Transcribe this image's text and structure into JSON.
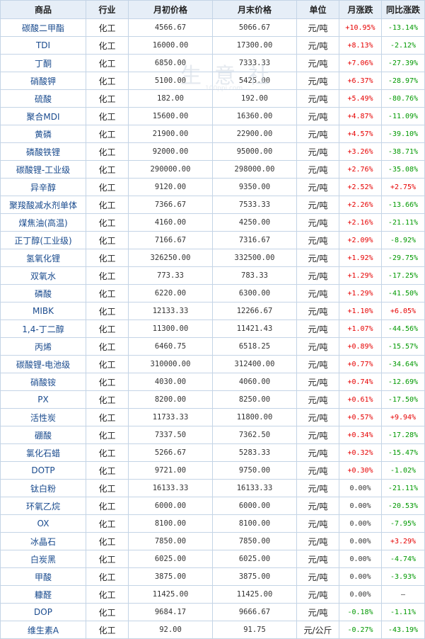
{
  "headers": [
    "商品",
    "行业",
    "月初价格",
    "月末价格",
    "单位",
    "月涨跌",
    "同比涨跌"
  ],
  "watermark": {
    "text": "生意社",
    "sub": "100ppi.com"
  },
  "rows": [
    {
      "name": "碳酸二甲酯",
      "industry": "化工",
      "start": "4566.67",
      "end": "5066.67",
      "unit": "元/吨",
      "month": "+10.95%",
      "yoy": "-13.14%"
    },
    {
      "name": "TDI",
      "industry": "化工",
      "start": "16000.00",
      "end": "17300.00",
      "unit": "元/吨",
      "month": "+8.13%",
      "yoy": "-2.12%"
    },
    {
      "name": "丁酮",
      "industry": "化工",
      "start": "6850.00",
      "end": "7333.33",
      "unit": "元/吨",
      "month": "+7.06%",
      "yoy": "-27.39%"
    },
    {
      "name": "硝酸钾",
      "industry": "化工",
      "start": "5100.00",
      "end": "5425.00",
      "unit": "元/吨",
      "month": "+6.37%",
      "yoy": "-28.97%"
    },
    {
      "name": "硫酸",
      "industry": "化工",
      "start": "182.00",
      "end": "192.00",
      "unit": "元/吨",
      "month": "+5.49%",
      "yoy": "-80.76%"
    },
    {
      "name": "聚合MDI",
      "industry": "化工",
      "start": "15600.00",
      "end": "16360.00",
      "unit": "元/吨",
      "month": "+4.87%",
      "yoy": "-11.09%"
    },
    {
      "name": "黄磷",
      "industry": "化工",
      "start": "21900.00",
      "end": "22900.00",
      "unit": "元/吨",
      "month": "+4.57%",
      "yoy": "-39.10%"
    },
    {
      "name": "磷酸铁锂",
      "industry": "化工",
      "start": "92000.00",
      "end": "95000.00",
      "unit": "元/吨",
      "month": "+3.26%",
      "yoy": "-38.71%"
    },
    {
      "name": "碳酸锂-工业级",
      "industry": "化工",
      "start": "290000.00",
      "end": "298000.00",
      "unit": "元/吨",
      "month": "+2.76%",
      "yoy": "-35.08%"
    },
    {
      "name": "异辛醇",
      "industry": "化工",
      "start": "9120.00",
      "end": "9350.00",
      "unit": "元/吨",
      "month": "+2.52%",
      "yoy": "+2.75%"
    },
    {
      "name": "聚羧酸减水剂单体",
      "industry": "化工",
      "start": "7366.67",
      "end": "7533.33",
      "unit": "元/吨",
      "month": "+2.26%",
      "yoy": "-13.66%"
    },
    {
      "name": "煤焦油(高温)",
      "industry": "化工",
      "start": "4160.00",
      "end": "4250.00",
      "unit": "元/吨",
      "month": "+2.16%",
      "yoy": "-21.11%"
    },
    {
      "name": "正丁醇(工业级)",
      "industry": "化工",
      "start": "7166.67",
      "end": "7316.67",
      "unit": "元/吨",
      "month": "+2.09%",
      "yoy": "-8.92%"
    },
    {
      "name": "氢氧化锂",
      "industry": "化工",
      "start": "326250.00",
      "end": "332500.00",
      "unit": "元/吨",
      "month": "+1.92%",
      "yoy": "-29.75%"
    },
    {
      "name": "双氧水",
      "industry": "化工",
      "start": "773.33",
      "end": "783.33",
      "unit": "元/吨",
      "month": "+1.29%",
      "yoy": "-17.25%"
    },
    {
      "name": "磷酸",
      "industry": "化工",
      "start": "6220.00",
      "end": "6300.00",
      "unit": "元/吨",
      "month": "+1.29%",
      "yoy": "-41.50%"
    },
    {
      "name": "MIBK",
      "industry": "化工",
      "start": "12133.33",
      "end": "12266.67",
      "unit": "元/吨",
      "month": "+1.10%",
      "yoy": "+6.05%"
    },
    {
      "name": "1,4-丁二醇",
      "industry": "化工",
      "start": "11300.00",
      "end": "11421.43",
      "unit": "元/吨",
      "month": "+1.07%",
      "yoy": "-44.56%"
    },
    {
      "name": "丙烯",
      "industry": "化工",
      "start": "6460.75",
      "end": "6518.25",
      "unit": "元/吨",
      "month": "+0.89%",
      "yoy": "-15.57%"
    },
    {
      "name": "碳酸锂-电池级",
      "industry": "化工",
      "start": "310000.00",
      "end": "312400.00",
      "unit": "元/吨",
      "month": "+0.77%",
      "yoy": "-34.64%"
    },
    {
      "name": "硝酸铵",
      "industry": "化工",
      "start": "4030.00",
      "end": "4060.00",
      "unit": "元/吨",
      "month": "+0.74%",
      "yoy": "-12.69%"
    },
    {
      "name": "PX",
      "industry": "化工",
      "start": "8200.00",
      "end": "8250.00",
      "unit": "元/吨",
      "month": "+0.61%",
      "yoy": "-17.50%"
    },
    {
      "name": "活性炭",
      "industry": "化工",
      "start": "11733.33",
      "end": "11800.00",
      "unit": "元/吨",
      "month": "+0.57%",
      "yoy": "+9.94%"
    },
    {
      "name": "硼酸",
      "industry": "化工",
      "start": "7337.50",
      "end": "7362.50",
      "unit": "元/吨",
      "month": "+0.34%",
      "yoy": "-17.28%"
    },
    {
      "name": "氯化石蜡",
      "industry": "化工",
      "start": "5266.67",
      "end": "5283.33",
      "unit": "元/吨",
      "month": "+0.32%",
      "yoy": "-15.47%"
    },
    {
      "name": "DOTP",
      "industry": "化工",
      "start": "9721.00",
      "end": "9750.00",
      "unit": "元/吨",
      "month": "+0.30%",
      "yoy": "-1.02%"
    },
    {
      "name": "钛白粉",
      "industry": "化工",
      "start": "16133.33",
      "end": "16133.33",
      "unit": "元/吨",
      "month": "0.00%",
      "yoy": "-21.11%"
    },
    {
      "name": "环氧乙烷",
      "industry": "化工",
      "start": "6000.00",
      "end": "6000.00",
      "unit": "元/吨",
      "month": "0.00%",
      "yoy": "-20.53%"
    },
    {
      "name": "OX",
      "industry": "化工",
      "start": "8100.00",
      "end": "8100.00",
      "unit": "元/吨",
      "month": "0.00%",
      "yoy": "-7.95%"
    },
    {
      "name": "冰晶石",
      "industry": "化工",
      "start": "7850.00",
      "end": "7850.00",
      "unit": "元/吨",
      "month": "0.00%",
      "yoy": "+3.29%"
    },
    {
      "name": "白炭黑",
      "industry": "化工",
      "start": "6025.00",
      "end": "6025.00",
      "unit": "元/吨",
      "month": "0.00%",
      "yoy": "-4.74%"
    },
    {
      "name": "甲酸",
      "industry": "化工",
      "start": "3875.00",
      "end": "3875.00",
      "unit": "元/吨",
      "month": "0.00%",
      "yoy": "-3.93%"
    },
    {
      "name": "糠醛",
      "industry": "化工",
      "start": "11425.00",
      "end": "11425.00",
      "unit": "元/吨",
      "month": "0.00%",
      "yoy": "—"
    },
    {
      "name": "DOP",
      "industry": "化工",
      "start": "9684.17",
      "end": "9666.67",
      "unit": "元/吨",
      "month": "-0.18%",
      "yoy": "-1.11%"
    },
    {
      "name": "维生素A",
      "industry": "化工",
      "start": "92.00",
      "end": "91.75",
      "unit": "元/公斤",
      "month": "-0.27%",
      "yoy": "-43.19%"
    }
  ],
  "colors": {
    "up": "#e60000",
    "down": "#009900",
    "flat": "#333333",
    "name": "#1a4b8e",
    "header_bg": "#e6eef7",
    "border": "#c4d4e6"
  }
}
